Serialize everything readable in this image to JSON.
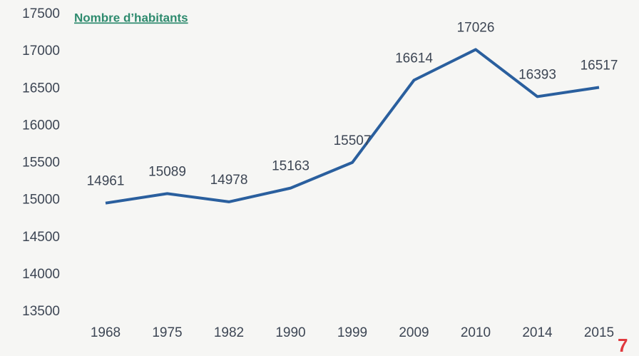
{
  "chart_data": {
    "type": "line",
    "title": "Nombre d’habitants",
    "categories": [
      "1968",
      "1975",
      "1982",
      "1990",
      "1999",
      "2009",
      "2010",
      "2014",
      "2015"
    ],
    "series": [
      {
        "name": "Nombre d’habitants",
        "color": "#2a5f9e",
        "values": [
          14961,
          15089,
          14978,
          15163,
          15507,
          16614,
          17026,
          16393,
          16517
        ]
      }
    ],
    "ylim": [
      13500,
      17500
    ],
    "yticks": [
      13500,
      14000,
      14500,
      15000,
      15500,
      16000,
      16500,
      17000,
      17500
    ],
    "grid": false
  },
  "page_number": "7"
}
